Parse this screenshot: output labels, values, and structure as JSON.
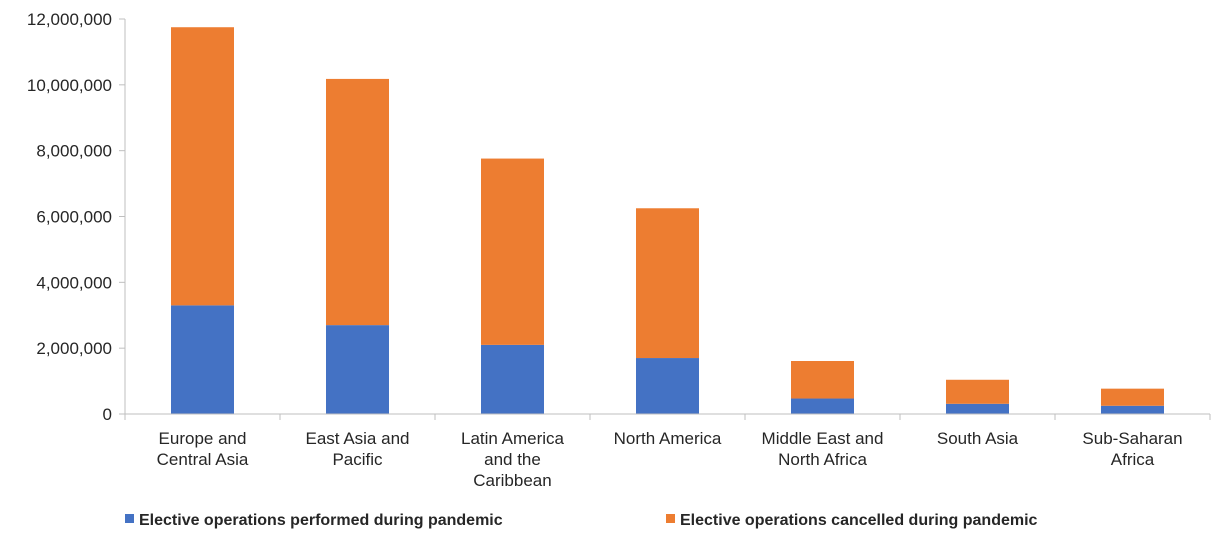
{
  "chart_data": {
    "type": "bar",
    "stacked": true,
    "categories": [
      [
        "Europe and",
        "Central Asia"
      ],
      [
        "East Asia and",
        "Pacific"
      ],
      [
        "Latin America",
        "and the",
        "Caribbean"
      ],
      [
        "North America"
      ],
      [
        "Middle East and",
        "North Africa"
      ],
      [
        "South Asia"
      ],
      [
        "Sub-Saharan",
        "Africa"
      ]
    ],
    "series": [
      {
        "name": "Elective operations performed during pandemic",
        "color": "#4472C4",
        "values": [
          3300000,
          2700000,
          2100000,
          1700000,
          470000,
          310000,
          250000
        ]
      },
      {
        "name": "Elective operations cancelled during pandemic",
        "color": "#ED7D31",
        "values": [
          8450000,
          7480000,
          5660000,
          4550000,
          1140000,
          730000,
          520000
        ]
      }
    ],
    "ylim": [
      0,
      12000000
    ],
    "yticks": [
      0,
      2000000,
      4000000,
      6000000,
      8000000,
      10000000,
      12000000
    ],
    "ytick_labels": [
      "0",
      "2,000,000",
      "4,000,000",
      "6,000,000",
      "8,000,000",
      "10,000,000",
      "12,000,000"
    ],
    "grid": false,
    "legend_position": "bottom",
    "title": "",
    "xlabel": "",
    "ylabel": ""
  }
}
